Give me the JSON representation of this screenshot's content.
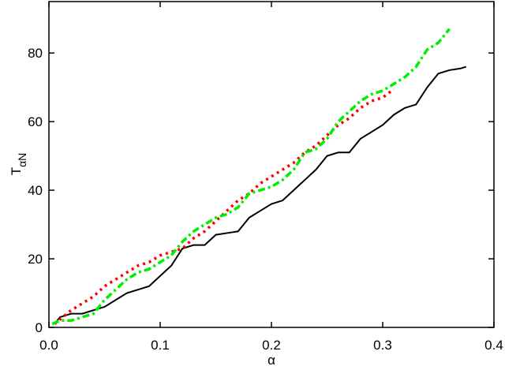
{
  "chart_data": {
    "type": "line",
    "xlabel": "α",
    "ylabel": {
      "main": "T",
      "subscript": "αN"
    },
    "xlim": [
      0,
      0.4
    ],
    "ylim": [
      0,
      95
    ],
    "xticks": [
      {
        "value": 0,
        "label": "0.0"
      },
      0.1,
      0.2,
      0.3,
      0.4
    ],
    "yticks": [
      0,
      20,
      40,
      60,
      80
    ],
    "series": [
      {
        "color": "#000000",
        "style": "solid",
        "x": [
          0.005,
          0.01,
          0.02,
          0.03,
          0.04,
          0.05,
          0.06,
          0.07,
          0.08,
          0.09,
          0.1,
          0.11,
          0.12,
          0.13,
          0.14,
          0.15,
          0.16,
          0.17,
          0.18,
          0.19,
          0.2,
          0.21,
          0.22,
          0.23,
          0.24,
          0.25,
          0.26,
          0.27,
          0.28,
          0.29,
          0.3,
          0.31,
          0.32,
          0.33,
          0.34,
          0.35,
          0.36,
          0.37,
          0.375
        ],
        "values": [
          1,
          3,
          4,
          4,
          5,
          6,
          8,
          10,
          11,
          12,
          15,
          18,
          23,
          24,
          24,
          27,
          27.5,
          28,
          32,
          34,
          36,
          37,
          40,
          43,
          46,
          50,
          51,
          51,
          55,
          57,
          59,
          62,
          64,
          65,
          70,
          74,
          75,
          75.5,
          76
        ]
      },
      {
        "color": "#ff0000",
        "style": "dotted",
        "x": [
          0.005,
          0.02,
          0.03,
          0.04,
          0.05,
          0.06,
          0.07,
          0.08,
          0.09,
          0.1,
          0.11,
          0.12,
          0.13,
          0.14,
          0.15,
          0.16,
          0.17,
          0.18,
          0.19,
          0.2,
          0.21,
          0.22,
          0.23,
          0.24,
          0.25,
          0.26,
          0.27,
          0.28,
          0.29,
          0.3,
          0.31
        ],
        "values": [
          1,
          5,
          7,
          9,
          12,
          14,
          16,
          18,
          19,
          21,
          22,
          23,
          26,
          28,
          31,
          34,
          37,
          39,
          42,
          44,
          46,
          48,
          51,
          53,
          56,
          59,
          61,
          64,
          66,
          67,
          69.5
        ]
      },
      {
        "color": "#00ee00",
        "style": "dashdot",
        "x": [
          0.003,
          0.01,
          0.02,
          0.03,
          0.04,
          0.05,
          0.06,
          0.07,
          0.08,
          0.09,
          0.1,
          0.11,
          0.12,
          0.13,
          0.14,
          0.15,
          0.16,
          0.17,
          0.18,
          0.19,
          0.2,
          0.21,
          0.22,
          0.23,
          0.24,
          0.25,
          0.26,
          0.27,
          0.28,
          0.29,
          0.3,
          0.31,
          0.32,
          0.33,
          0.34,
          0.35,
          0.36
        ],
        "values": [
          1,
          2,
          2,
          3,
          4,
          8,
          11,
          14,
          16,
          17,
          19,
          21,
          25,
          28,
          30,
          32,
          33,
          35,
          39,
          40,
          41,
          43,
          46,
          51,
          52,
          55,
          60,
          63,
          66,
          68,
          69,
          71,
          73,
          76,
          81,
          83,
          87
        ]
      }
    ]
  }
}
